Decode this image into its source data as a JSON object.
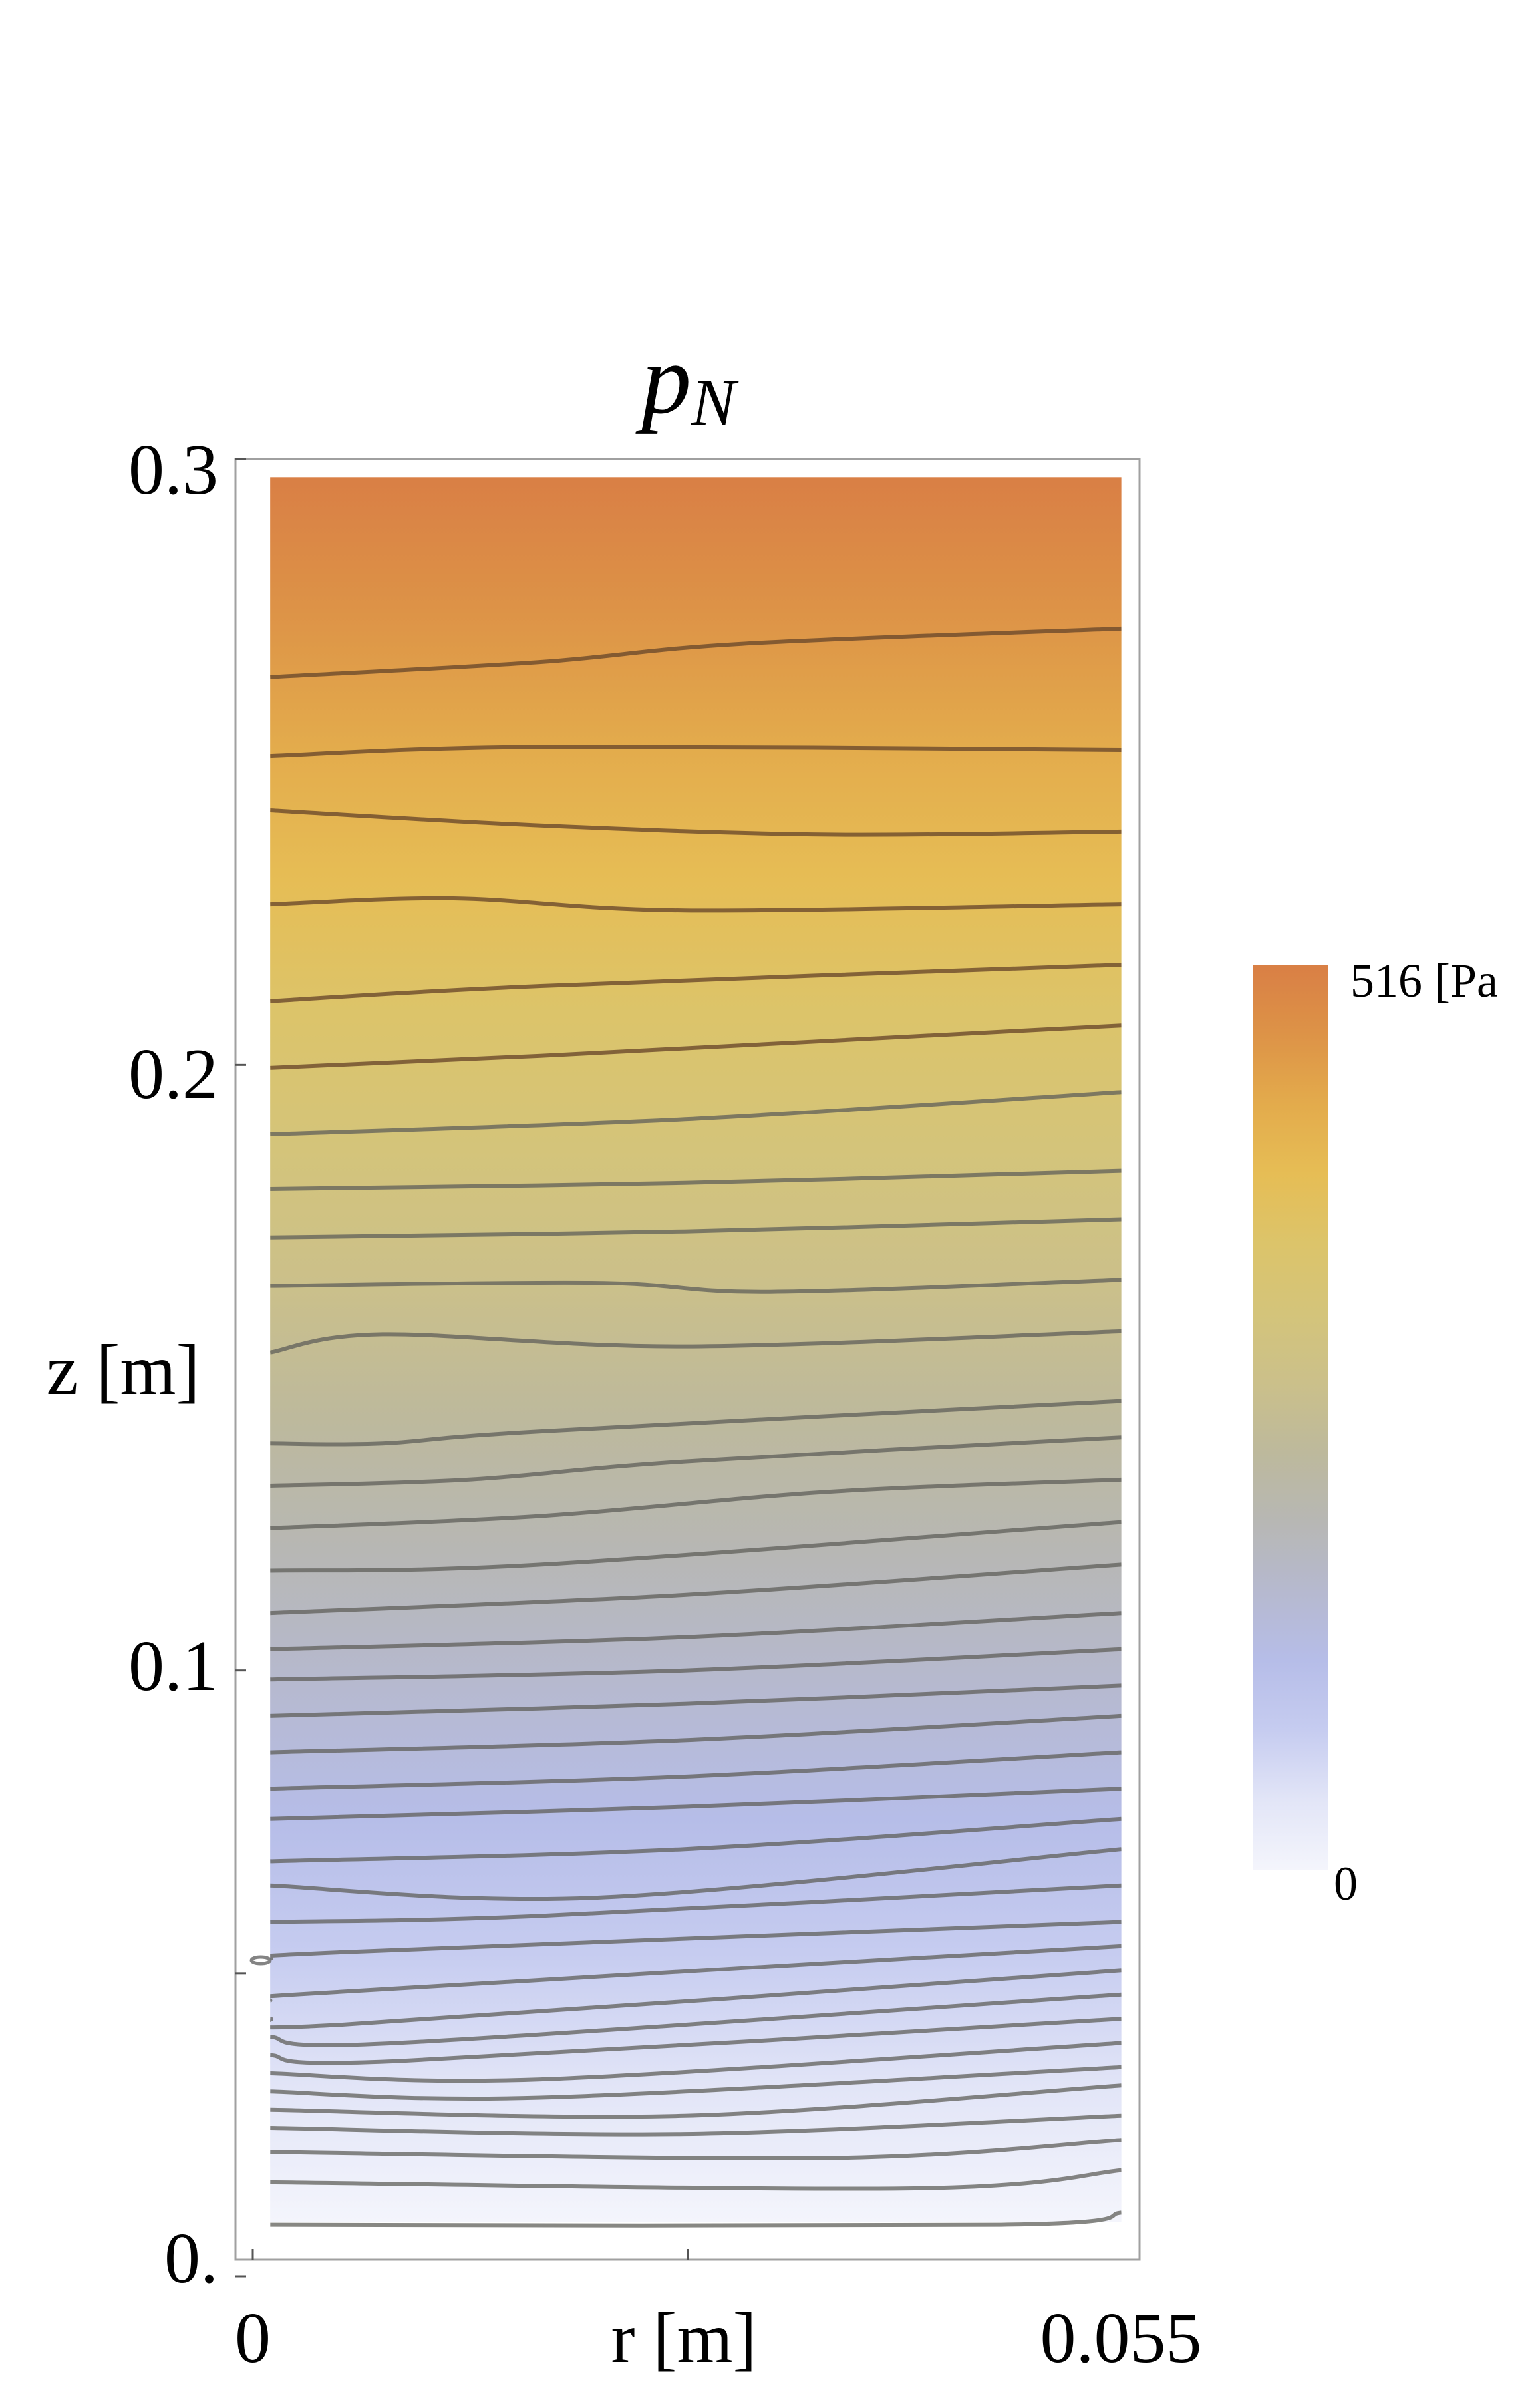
{
  "chart_data": {
    "type": "contour",
    "title": "p",
    "title_subscript": "N",
    "xlabel": "r [m]",
    "ylabel": "z [m]",
    "xlim": [
      0,
      0.055
    ],
    "ylim": [
      0,
      0.3
    ],
    "x_tick_labels": [
      "0",
      "0.055"
    ],
    "y_tick_labels": [
      "0.",
      "0.1",
      "0.2",
      "0.3"
    ],
    "y_ticks": [
      0,
      0.1,
      0.2,
      0.3
    ],
    "x_ticks_unlabeled": [
      0.0275
    ],
    "y_ticks_unlabeled": [
      0.05
    ],
    "data_region": {
      "r": [
        0.0011,
        0.0549
      ],
      "z": [
        0.009,
        0.297
      ]
    },
    "colorbar": {
      "max_label": "516 [Pa",
      "min_label": "0",
      "max": 516,
      "min": 0,
      "colors": [
        "#d97f45",
        "#dd9347",
        "#e3ab4c",
        "#e6bd55",
        "#dcc46a",
        "#d4c47a",
        "#cbc08a",
        "#bdb99c",
        "#b7b7b4",
        "#b6b9cf",
        "#b6bde8",
        "#c6ccf0",
        "#e2e5f7",
        "#f4f5fc"
      ]
    },
    "contour_lines": [
      {
        "r": [
          0.0,
          0.0182,
          0.0309,
          0.0545
        ],
        "z": [
          0.264,
          0.2665,
          0.2695,
          0.272
        ]
      },
      {
        "r": [
          0.0,
          0.0182,
          0.0545
        ],
        "z": [
          0.251,
          0.2525,
          0.252
        ]
      },
      {
        "r": [
          0.0,
          0.0182,
          0.0364,
          0.0545
        ],
        "z": [
          0.242,
          0.2395,
          0.238,
          0.2385
        ]
      },
      {
        "r": [
          0.0,
          0.0127,
          0.0273,
          0.0545
        ],
        "z": [
          0.2265,
          0.2275,
          0.2255,
          0.2265
        ]
      },
      {
        "r": [
          0.0,
          0.0182,
          0.0545
        ],
        "z": [
          0.2105,
          0.213,
          0.2165
        ]
      },
      {
        "r": [
          0.0,
          0.0182,
          0.0545
        ],
        "z": [
          0.1995,
          0.2015,
          0.2065
        ]
      },
      {
        "r": [
          0.0,
          0.0273,
          0.0545
        ],
        "z": [
          0.1885,
          0.191,
          0.1955
        ]
      },
      {
        "r": [
          0.0,
          0.0273,
          0.0545
        ],
        "z": [
          0.1795,
          0.1805,
          0.1825
        ]
      },
      {
        "r": [
          0.0,
          0.0273,
          0.0545
        ],
        "z": [
          0.1715,
          0.1725,
          0.1745
        ]
      },
      {
        "r": [
          0.0,
          0.0218,
          0.0327,
          0.0545
        ],
        "z": [
          0.1635,
          0.164,
          0.1625,
          0.1645
        ]
      },
      {
        "r": [
          0.0,
          0.0082,
          0.0273,
          0.0545
        ],
        "z": [
          0.1525,
          0.1555,
          0.1535,
          0.156
        ]
      },
      {
        "r": [
          0.0,
          0.0082,
          0.0182,
          0.0545
        ],
        "z": [
          0.1375,
          0.1375,
          0.1395,
          0.1445
        ]
      },
      {
        "r": [
          0.0,
          0.0136,
          0.0273,
          0.0545
        ],
        "z": [
          0.1305,
          0.1315,
          0.1345,
          0.1385
        ]
      },
      {
        "r": [
          0.0,
          0.0182,
          0.0364,
          0.0545
        ],
        "z": [
          0.1235,
          0.1255,
          0.1295,
          0.1315
        ]
      },
      {
        "r": [
          0.0,
          0.0182,
          0.0545
        ],
        "z": [
          0.1165,
          0.1175,
          0.1245
        ]
      },
      {
        "r": [
          0.0,
          0.0273,
          0.0545
        ],
        "z": [
          0.1095,
          0.1125,
          0.1175
        ]
      },
      {
        "r": [
          0.0,
          0.0273,
          0.0545
        ],
        "z": [
          0.1035,
          0.1055,
          0.1095
        ]
      },
      {
        "r": [
          0.0,
          0.0273,
          0.0545
        ],
        "z": [
          0.0985,
          0.1,
          0.1035
        ]
      },
      {
        "r": [
          0.0,
          0.0273,
          0.0545
        ],
        "z": [
          0.0925,
          0.0945,
          0.0975
        ]
      },
      {
        "r": [
          0.0,
          0.0273,
          0.0545
        ],
        "z": [
          0.0865,
          0.0885,
          0.0925
        ]
      },
      {
        "r": [
          0.0,
          0.0273,
          0.0545
        ],
        "z": [
          0.0805,
          0.0825,
          0.0865
        ]
      },
      {
        "r": [
          0.0,
          0.0273,
          0.0545
        ],
        "z": [
          0.0755,
          0.0775,
          0.0805
        ]
      },
      {
        "r": [
          0.0,
          0.0273,
          0.0545
        ],
        "z": [
          0.0685,
          0.0705,
          0.0755
        ]
      },
      {
        "r": [
          0.0,
          0.0218,
          0.0545
        ],
        "z": [
          0.0645,
          0.0625,
          0.0705
        ]
      },
      {
        "r": [
          0.0,
          0.0182,
          0.0545
        ],
        "z": [
          0.0585,
          0.0595,
          0.0645
        ]
      },
      {
        "r": [
          0.0,
          0.0055,
          0.0545
        ],
        "z": [
          0.0525,
          0.0535,
          0.0585
        ]
      },
      {
        "r": [
          0.0,
          0.0027,
          0.0545
        ],
        "z": [
          0.0455,
          0.0465,
          0.0545
        ]
      },
      {
        "r": [
          0.0,
          0.0055,
          0.0545
        ],
        "z": [
          0.0425,
          0.0415,
          0.0505
        ]
      },
      {
        "r": [
          0.0,
          0.0091,
          0.0545
        ],
        "z": [
          0.0395,
          0.0385,
          0.0465
        ]
      },
      {
        "r": [
          0.0,
          0.0091,
          0.0545
        ],
        "z": [
          0.0365,
          0.0355,
          0.0425
        ]
      },
      {
        "r": [
          0.0,
          0.0182,
          0.0545
        ],
        "z": [
          0.0335,
          0.0325,
          0.0385
        ]
      },
      {
        "r": [
          0.0,
          0.0182,
          0.0545
        ],
        "z": [
          0.0305,
          0.0295,
          0.0345
        ]
      },
      {
        "r": [
          0.0,
          0.0273,
          0.0545
        ],
        "z": [
          0.0275,
          0.0265,
          0.0315
        ]
      },
      {
        "r": [
          0.0,
          0.0273,
          0.0545
        ],
        "z": [
          0.0245,
          0.0235,
          0.0265
        ]
      },
      {
        "r": [
          0.0,
          0.0364,
          0.0545
        ],
        "z": [
          0.0205,
          0.0195,
          0.0225
        ]
      },
      {
        "r": [
          0.0,
          0.0418,
          0.0545
        ],
        "z": [
          0.0155,
          0.0145,
          0.0175
        ]
      },
      {
        "r": [
          0.0,
          0.0473,
          0.0545
        ],
        "z": [
          0.0085,
          0.0085,
          0.0105
        ]
      }
    ]
  }
}
